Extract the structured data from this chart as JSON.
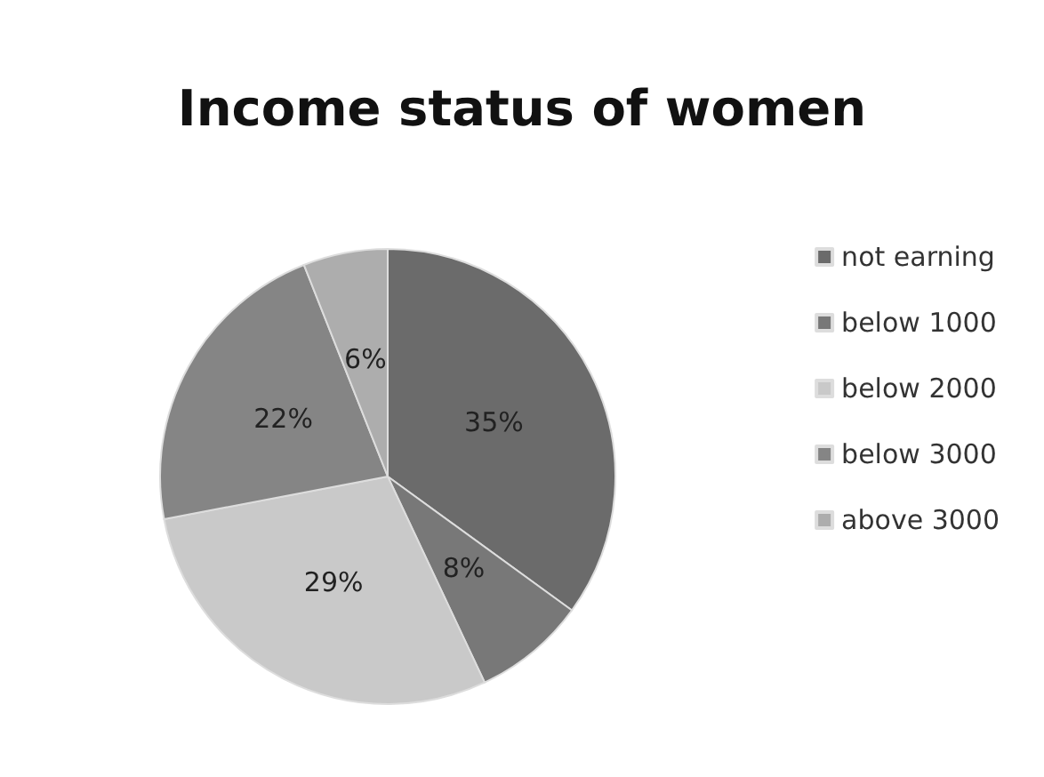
{
  "chart_data": {
    "type": "pie",
    "title": "Income status of women",
    "categories": [
      "not earning",
      "below 1000",
      "below 2000",
      "below 3000",
      "above 3000"
    ],
    "values": [
      35,
      8,
      29,
      22,
      6
    ],
    "value_labels": [
      "35%",
      "8%",
      "29%",
      "22%",
      "6%"
    ],
    "colors": [
      "#6b6b6b",
      "#787878",
      "#c9c9c9",
      "#858585",
      "#adadad"
    ],
    "legend": "right"
  }
}
